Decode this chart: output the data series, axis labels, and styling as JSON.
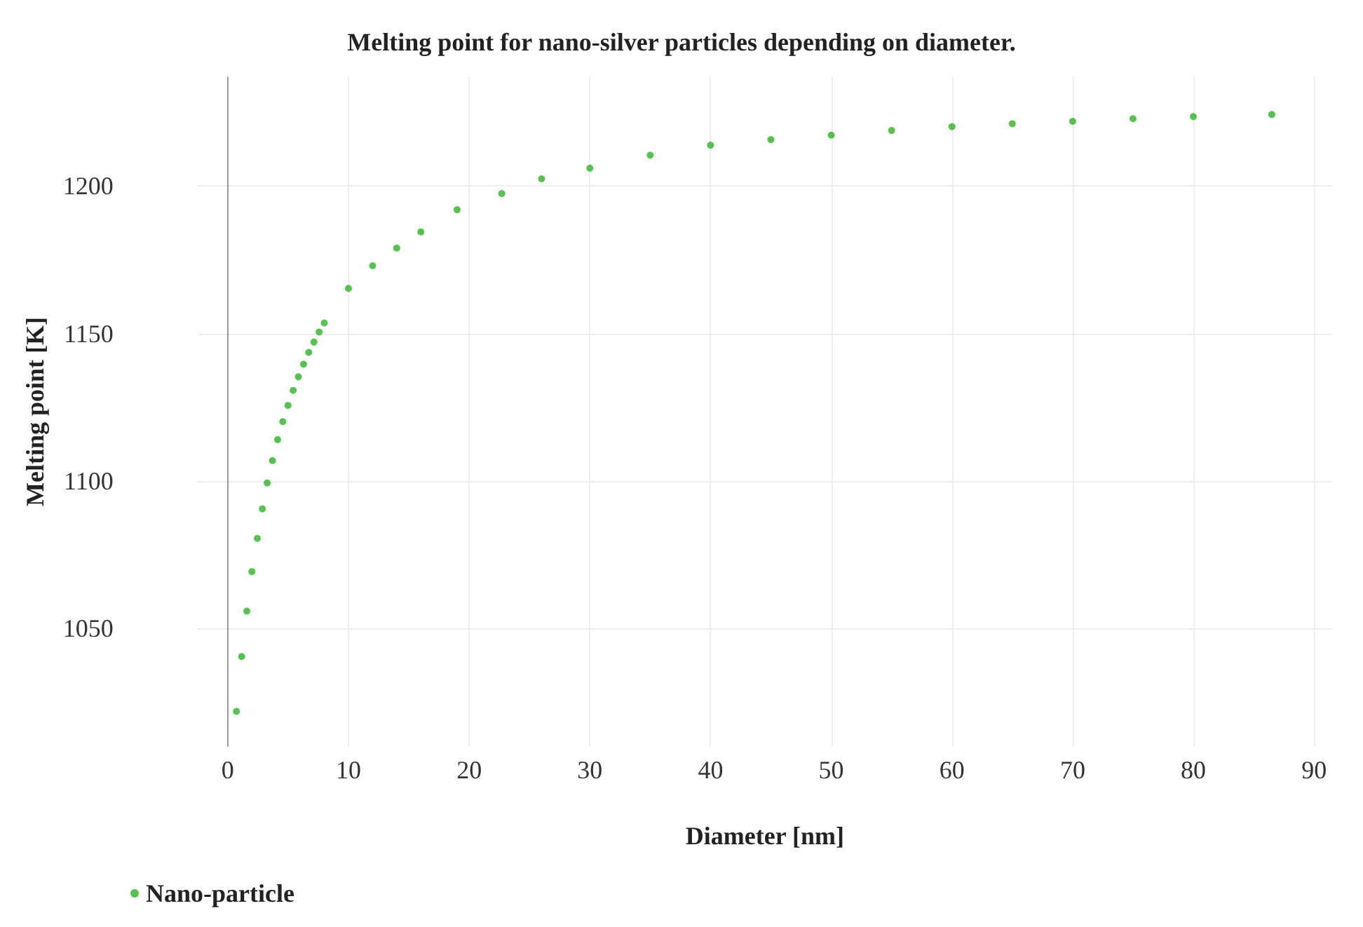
{
  "chart_data": {
    "type": "scatter",
    "title": "Melting point for nano-silver particles depending on diameter.",
    "xlabel": "Diameter [nm]",
    "ylabel": "Melting point [K]",
    "xlim": [
      -2.5,
      91.5
    ],
    "ylim": [
      1010,
      1237
    ],
    "xticks": [
      0,
      10,
      20,
      30,
      40,
      50,
      60,
      70,
      80,
      90
    ],
    "yticks": [
      1050,
      1100,
      1150,
      1200
    ],
    "grid": true,
    "legend": "bottom left",
    "marker": "circle",
    "series": [
      {
        "name": "Nano-particle",
        "color": "#2ab421",
        "x": [
          0.72,
          1.15,
          1.58,
          2.0,
          2.45,
          2.87,
          3.27,
          3.7,
          4.13,
          4.56,
          4.99,
          5.42,
          5.85,
          6.28,
          6.71,
          7.14,
          7.57,
          8.0,
          10,
          12,
          14,
          16,
          19,
          22.7,
          26,
          30,
          35,
          40,
          45,
          50,
          55,
          60,
          65,
          70,
          75,
          80,
          86.5
        ],
        "values": [
          1021.8,
          1040.4,
          1055.8,
          1069.2,
          1080.5,
          1090.5,
          1099.3,
          1106.9,
          1114,
          1120.1,
          1125.6,
          1130.7,
          1135.3,
          1139.6,
          1143.6,
          1147.1,
          1150.5,
          1153.6,
          1165.3,
          1173,
          1179,
          1184.5,
          1192,
          1197.5,
          1202.5,
          1206.1,
          1210.5,
          1213.9,
          1215.8,
          1217.3,
          1218.9,
          1220.2,
          1221.2,
          1222,
          1222.9,
          1223.6,
          1224.3
        ]
      }
    ]
  }
}
